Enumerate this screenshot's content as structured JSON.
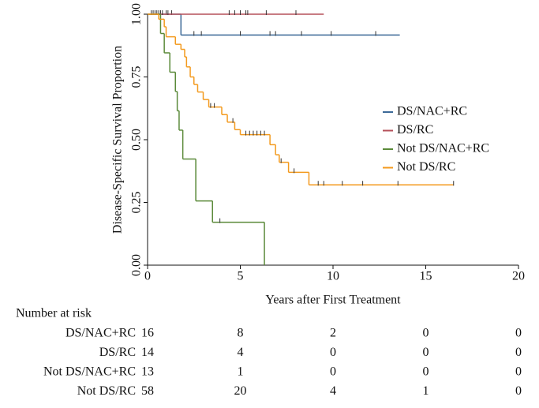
{
  "chart_data": {
    "type": "step",
    "xlabel": "Years after First Treatment",
    "ylabel": "Disease-Specific Survival Proportion",
    "xlim": [
      0,
      20
    ],
    "xticks": [
      0,
      5,
      10,
      15,
      20
    ],
    "ylim": [
      0,
      1
    ],
    "yticks": [
      {
        "value": 0,
        "label": "0.00"
      },
      {
        "value": 0.25,
        "label": "0.25"
      },
      {
        "value": 0.5,
        "label": "0.50"
      },
      {
        "value": 0.75,
        "label": "0.75"
      },
      {
        "value": 1,
        "label": "1.00"
      }
    ],
    "legend": "right",
    "series": [
      {
        "name": "DS/NAC+RC",
        "color": "#3d6a98",
        "x": [
          0,
          1.8,
          13.6
        ],
        "values": [
          1.0,
          0.917,
          0.917
        ],
        "censored": [
          0.3,
          0.5,
          0.7,
          1.0,
          1.3,
          2.5,
          2.9,
          5.0,
          6.6,
          6.9,
          8.3,
          9.9,
          12.3
        ]
      },
      {
        "name": "DS/RC",
        "color": "#b5505a",
        "x": [
          0,
          9.5
        ],
        "values": [
          1.0,
          1.0
        ],
        "censored": [
          0.2,
          0.4,
          0.6,
          0.8,
          1.1,
          4.4,
          4.7,
          5.0,
          5.3,
          5.4,
          6.4,
          8.0
        ]
      },
      {
        "name": "Not DS/NAC+RC",
        "color": "#5b8a3a",
        "x": [
          0,
          0.7,
          0.9,
          1.2,
          1.5,
          1.6,
          1.7,
          1.9,
          2.6,
          3.5,
          6.3
        ],
        "values": [
          1.0,
          0.923,
          0.846,
          0.769,
          0.692,
          0.615,
          0.538,
          0.423,
          0.256,
          0.171,
          0
        ],
        "censored": [
          3.9
        ]
      },
      {
        "name": "Not DS/RC",
        "color": "#f39a1e",
        "x": [
          0,
          0.6,
          0.9,
          1.0,
          1.5,
          1.8,
          2.0,
          2.1,
          2.3,
          2.5,
          2.7,
          3.0,
          3.3,
          4.0,
          4.3,
          4.7,
          5.0,
          6.6,
          6.9,
          7.1,
          7.6,
          8.7,
          16.5
        ],
        "values": [
          1.0,
          0.98,
          0.95,
          0.91,
          0.88,
          0.86,
          0.83,
          0.79,
          0.75,
          0.72,
          0.69,
          0.66,
          0.63,
          0.6,
          0.57,
          0.54,
          0.52,
          0.48,
          0.44,
          0.41,
          0.37,
          0.32,
          0.32
        ],
        "censored": [
          3.4,
          3.6,
          4.6,
          5.3,
          5.5,
          5.7,
          5.9,
          6.1,
          6.3,
          7.2,
          7.9,
          9.2,
          9.5,
          10.5,
          11.6,
          13.5,
          16.5
        ]
      }
    ]
  },
  "risk_table": {
    "title": "Number at risk",
    "rows": [
      {
        "label": "DS/NAC+RC",
        "counts": [
          16,
          8,
          2,
          0,
          0
        ]
      },
      {
        "label": "DS/RC",
        "counts": [
          14,
          4,
          0,
          0,
          0
        ]
      },
      {
        "label": "Not DS/NAC+RC",
        "counts": [
          13,
          1,
          0,
          0,
          0
        ]
      },
      {
        "label": "Not DS/RC",
        "counts": [
          58,
          20,
          4,
          1,
          0
        ]
      }
    ]
  }
}
